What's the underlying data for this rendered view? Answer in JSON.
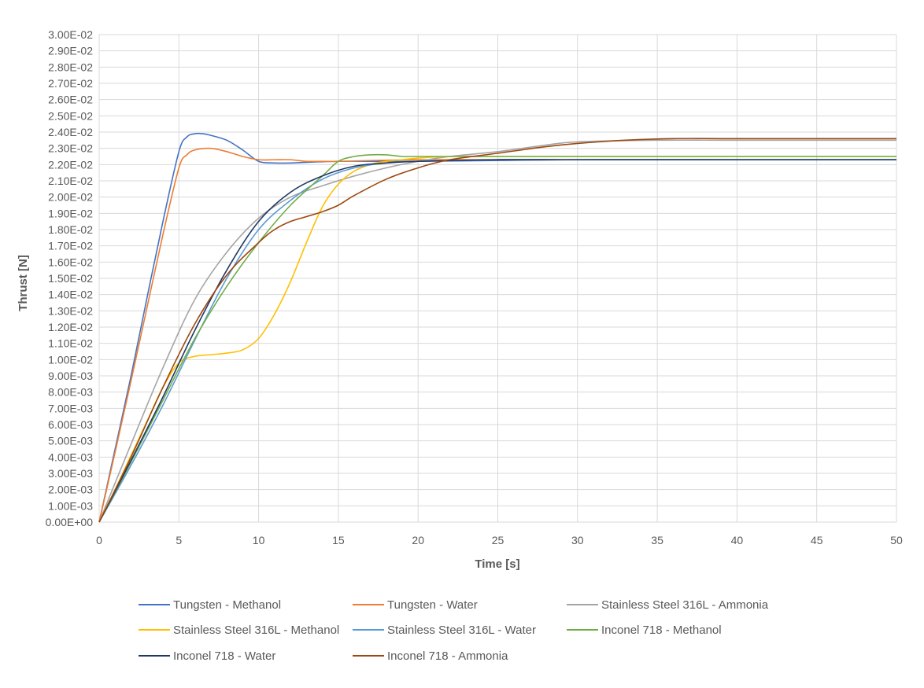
{
  "chart_data": {
    "type": "line",
    "title": "",
    "xlabel": "Time [s]",
    "ylabel": "Thrust [N]",
    "xlim": [
      0,
      50
    ],
    "ylim": [
      0,
      0.03
    ],
    "x_ticks": [
      "0",
      "5",
      "10",
      "15",
      "20",
      "25",
      "30",
      "35",
      "40",
      "45",
      "50"
    ],
    "y_ticks": [
      "0.00E+00",
      "1.00E-03",
      "2.00E-03",
      "3.00E-03",
      "4.00E-03",
      "5.00E-03",
      "6.00E-03",
      "7.00E-03",
      "8.00E-03",
      "9.00E-03",
      "1.00E-02",
      "1.10E-02",
      "1.20E-02",
      "1.30E-02",
      "1.40E-02",
      "1.50E-02",
      "1.60E-02",
      "1.70E-02",
      "1.80E-02",
      "1.90E-02",
      "2.00E-02",
      "2.10E-02",
      "2.20E-02",
      "2.30E-02",
      "2.40E-02",
      "2.50E-02",
      "2.60E-02",
      "2.70E-02",
      "2.80E-02",
      "2.90E-02",
      "3.00E-02"
    ],
    "grid": "vertical-and-horizontal",
    "legend_position": "bottom",
    "series": [
      {
        "name": "Tungsten - Methanol",
        "color": "#4472c4",
        "points": [
          [
            0,
            0
          ],
          [
            1,
            0.0045
          ],
          [
            2,
            0.009
          ],
          [
            3,
            0.0138
          ],
          [
            4,
            0.0185
          ],
          [
            5,
            0.0228
          ],
          [
            5.5,
            0.0237
          ],
          [
            6,
            0.0239
          ],
          [
            6.5,
            0.0239
          ],
          [
            7,
            0.0238
          ],
          [
            8,
            0.0235
          ],
          [
            9,
            0.0229
          ],
          [
            10,
            0.0222
          ],
          [
            11,
            0.0221
          ],
          [
            12,
            0.0221
          ],
          [
            15,
            0.0222
          ],
          [
            20,
            0.0222
          ],
          [
            30,
            0.0223
          ],
          [
            40,
            0.0223
          ],
          [
            50,
            0.0223
          ]
        ]
      },
      {
        "name": "Tungsten - Water",
        "color": "#ed7d31",
        "points": [
          [
            0,
            0
          ],
          [
            1,
            0.0043
          ],
          [
            2,
            0.0087
          ],
          [
            3,
            0.0132
          ],
          [
            4,
            0.0177
          ],
          [
            5,
            0.0218
          ],
          [
            5.5,
            0.0226
          ],
          [
            6,
            0.0229
          ],
          [
            7,
            0.023
          ],
          [
            8,
            0.0228
          ],
          [
            9,
            0.0225
          ],
          [
            10,
            0.0223
          ],
          [
            11,
            0.0223
          ],
          [
            12,
            0.0223
          ],
          [
            13,
            0.0222
          ],
          [
            14,
            0.0222
          ],
          [
            15,
            0.0222
          ],
          [
            20,
            0.0223
          ],
          [
            30,
            0.0223
          ],
          [
            40,
            0.0223
          ],
          [
            50,
            0.0223
          ]
        ]
      },
      {
        "name": "Stainless Steel 316L - Ammonia",
        "color": "#a5a5a5",
        "points": [
          [
            0,
            0
          ],
          [
            2,
            0.0048
          ],
          [
            4,
            0.0095
          ],
          [
            6,
            0.0137
          ],
          [
            8,
            0.0166
          ],
          [
            10,
            0.0187
          ],
          [
            12,
            0.02
          ],
          [
            14,
            0.0207
          ],
          [
            16,
            0.0213
          ],
          [
            18,
            0.0218
          ],
          [
            20,
            0.0222
          ],
          [
            22,
            0.0225
          ],
          [
            25,
            0.0228
          ],
          [
            28,
            0.0232
          ],
          [
            30,
            0.0234
          ],
          [
            35,
            0.0235
          ],
          [
            40,
            0.0235
          ],
          [
            50,
            0.0235
          ]
        ]
      },
      {
        "name": "Stainless Steel 316L - Methanol",
        "color": "#ffc000",
        "points": [
          [
            0,
            0
          ],
          [
            1,
            0.002
          ],
          [
            2,
            0.0041
          ],
          [
            3,
            0.0062
          ],
          [
            4,
            0.0083
          ],
          [
            5,
            0.0098
          ],
          [
            6,
            0.0102
          ],
          [
            7,
            0.0103
          ],
          [
            8,
            0.0104
          ],
          [
            9,
            0.0106
          ],
          [
            10,
            0.0113
          ],
          [
            11,
            0.0128
          ],
          [
            12,
            0.0148
          ],
          [
            13,
            0.0172
          ],
          [
            14,
            0.0194
          ],
          [
            15,
            0.0208
          ],
          [
            16,
            0.0216
          ],
          [
            17,
            0.022
          ],
          [
            18,
            0.0222
          ],
          [
            19,
            0.0223
          ],
          [
            20,
            0.0224
          ],
          [
            22,
            0.0225
          ],
          [
            25,
            0.0225
          ],
          [
            30,
            0.0225
          ],
          [
            40,
            0.0225
          ],
          [
            50,
            0.0225
          ]
        ]
      },
      {
        "name": "Stainless Steel 316L - Water",
        "color": "#5b9bd5",
        "points": [
          [
            0,
            0
          ],
          [
            2,
            0.0035
          ],
          [
            4,
            0.0072
          ],
          [
            6,
            0.0112
          ],
          [
            8,
            0.015
          ],
          [
            10,
            0.018
          ],
          [
            12,
            0.0198
          ],
          [
            14,
            0.0211
          ],
          [
            16,
            0.0218
          ],
          [
            18,
            0.0221
          ],
          [
            20,
            0.0222
          ],
          [
            25,
            0.0223
          ],
          [
            30,
            0.0223
          ],
          [
            40,
            0.0223
          ],
          [
            50,
            0.0223
          ]
        ]
      },
      {
        "name": "Inconel 718 - Methanol",
        "color": "#70ad47",
        "points": [
          [
            0,
            0
          ],
          [
            2,
            0.0037
          ],
          [
            4,
            0.0075
          ],
          [
            6,
            0.0113
          ],
          [
            8,
            0.0145
          ],
          [
            10,
            0.0172
          ],
          [
            12,
            0.0195
          ],
          [
            14,
            0.0213
          ],
          [
            15,
            0.0222
          ],
          [
            16,
            0.0225
          ],
          [
            17,
            0.0226
          ],
          [
            18,
            0.0226
          ],
          [
            19,
            0.0225
          ],
          [
            20,
            0.0225
          ],
          [
            25,
            0.0225
          ],
          [
            30,
            0.0225
          ],
          [
            40,
            0.0225
          ],
          [
            50,
            0.0225
          ]
        ]
      },
      {
        "name": "Inconel 718 - Water",
        "color": "#1f3864",
        "points": [
          [
            0,
            0
          ],
          [
            2,
            0.0038
          ],
          [
            4,
            0.0077
          ],
          [
            6,
            0.0118
          ],
          [
            8,
            0.0155
          ],
          [
            10,
            0.0185
          ],
          [
            12,
            0.0203
          ],
          [
            14,
            0.0213
          ],
          [
            16,
            0.0219
          ],
          [
            18,
            0.0221
          ],
          [
            20,
            0.0222
          ],
          [
            25,
            0.0223
          ],
          [
            30,
            0.0223
          ],
          [
            40,
            0.0223
          ],
          [
            50,
            0.0223
          ]
        ]
      },
      {
        "name": "Inconel 718 - Ammonia",
        "color": "#9e480e",
        "points": [
          [
            0,
            0
          ],
          [
            2,
            0.004
          ],
          [
            4,
            0.0083
          ],
          [
            6,
            0.0122
          ],
          [
            8,
            0.0152
          ],
          [
            10,
            0.0172
          ],
          [
            11,
            0.018
          ],
          [
            12,
            0.0185
          ],
          [
            13,
            0.0188
          ],
          [
            14,
            0.0191
          ],
          [
            15,
            0.0195
          ],
          [
            16,
            0.0201
          ],
          [
            18,
            0.0211
          ],
          [
            20,
            0.0218
          ],
          [
            22,
            0.0223
          ],
          [
            25,
            0.0227
          ],
          [
            28,
            0.0231
          ],
          [
            30,
            0.0233
          ],
          [
            33,
            0.0235
          ],
          [
            36,
            0.0236
          ],
          [
            40,
            0.0236
          ],
          [
            50,
            0.0236
          ]
        ]
      }
    ]
  }
}
